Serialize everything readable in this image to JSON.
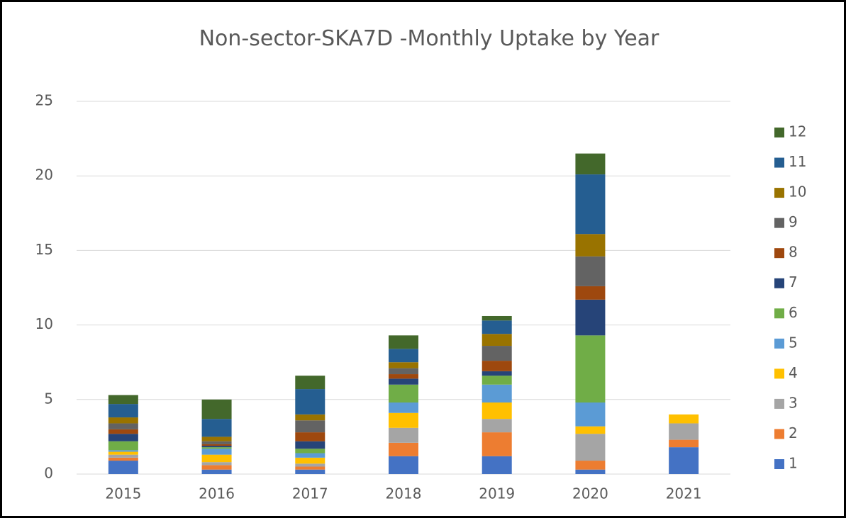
{
  "chart_data": {
    "type": "stacked_bar",
    "title": "Non-sector-SKA7D -Monthly Uptake by Year",
    "categories": [
      "2015",
      "2016",
      "2017",
      "2018",
      "2019",
      "2020",
      "2021"
    ],
    "series": [
      {
        "name": "1",
        "color": "#4472c4",
        "values": [
          0.9,
          0.3,
          0.3,
          1.2,
          1.2,
          0.3,
          1.8
        ]
      },
      {
        "name": "2",
        "color": "#ed7d31",
        "values": [
          0.2,
          0.3,
          0.2,
          0.9,
          1.6,
          0.6,
          0.5
        ]
      },
      {
        "name": "3",
        "color": "#a5a5a5",
        "values": [
          0.2,
          0.2,
          0.2,
          1.0,
          0.9,
          1.8,
          1.1
        ]
      },
      {
        "name": "4",
        "color": "#ffc000",
        "values": [
          0.2,
          0.5,
          0.4,
          1.0,
          1.1,
          0.5,
          0.6
        ]
      },
      {
        "name": "5",
        "color": "#5b9bd5",
        "values": [
          0.1,
          0.4,
          0.3,
          0.7,
          1.2,
          1.6,
          0
        ]
      },
      {
        "name": "6",
        "color": "#70ad47",
        "values": [
          0.6,
          0.1,
          0.3,
          1.2,
          0.6,
          4.5,
          0
        ]
      },
      {
        "name": "7",
        "color": "#264478",
        "values": [
          0.5,
          0.1,
          0.5,
          0.4,
          0.3,
          2.4,
          0
        ]
      },
      {
        "name": "8",
        "color": "#9e480e",
        "values": [
          0.3,
          0.1,
          0.6,
          0.3,
          0.7,
          0.9,
          0
        ]
      },
      {
        "name": "9",
        "color": "#636363",
        "values": [
          0.4,
          0.2,
          0.8,
          0.4,
          1.0,
          2.0,
          0
        ]
      },
      {
        "name": "10",
        "color": "#997300",
        "values": [
          0.4,
          0.3,
          0.4,
          0.4,
          0.8,
          1.5,
          0
        ]
      },
      {
        "name": "11",
        "color": "#255e91",
        "values": [
          0.9,
          1.2,
          1.7,
          0.9,
          0.9,
          4.0,
          0
        ]
      },
      {
        "name": "12",
        "color": "#43682b",
        "values": [
          0.6,
          1.3,
          0.9,
          0.9,
          0.3,
          1.4,
          0
        ]
      }
    ],
    "ylim": [
      0,
      25
    ],
    "yticks": [
      0,
      5,
      10,
      15,
      20,
      25
    ],
    "grid": true,
    "legend": "right"
  }
}
